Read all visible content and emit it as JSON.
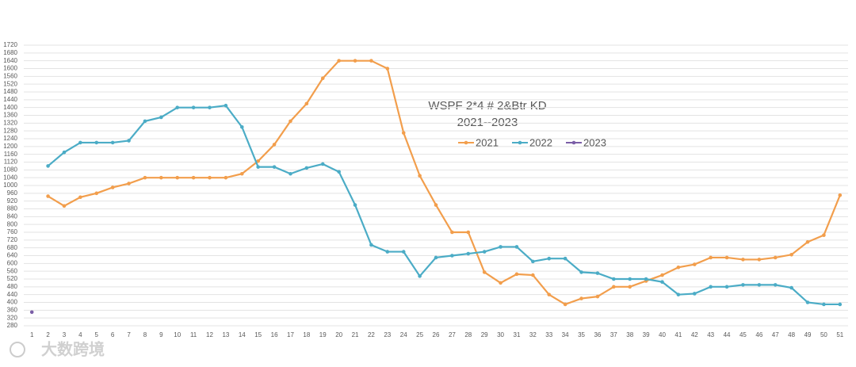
{
  "chart_data": {
    "type": "line",
    "title": "WSPF 2*4 # 2&Btr KD",
    "subtitle": "2021--2023",
    "watermark": "大数跨境",
    "categories": [
      "1",
      "2",
      "3",
      "4",
      "5",
      "6",
      "7",
      "8",
      "9",
      "10",
      "11",
      "12",
      "13",
      "14",
      "15",
      "16",
      "17",
      "18",
      "19",
      "20",
      "21",
      "22",
      "23",
      "24",
      "25",
      "26",
      "27",
      "28",
      "29",
      "30",
      "31",
      "32",
      "33",
      "34",
      "35",
      "36",
      "37",
      "38",
      "39",
      "40",
      "41",
      "42",
      "43",
      "44",
      "45",
      "46",
      "47",
      "48",
      "49",
      "50",
      "51"
    ],
    "series": [
      {
        "name": "2021",
        "color": "#f29e4c",
        "values": [
          null,
          945,
          895,
          940,
          960,
          990,
          1010,
          1040,
          1040,
          1040,
          1040,
          1040,
          1040,
          1060,
          1125,
          1210,
          1330,
          1420,
          1550,
          1640,
          1640,
          1640,
          1600,
          1270,
          1050,
          900,
          760,
          760,
          555,
          500,
          545,
          540,
          440,
          390,
          420,
          430,
          480,
          480,
          510,
          540,
          580,
          595,
          630,
          630,
          620,
          620,
          630,
          645,
          710,
          745,
          950
        ]
      },
      {
        "name": "2022",
        "color": "#4bacc6",
        "values": [
          null,
          1100,
          1170,
          1220,
          1220,
          1220,
          1230,
          1330,
          1350,
          1400,
          1400,
          1400,
          1410,
          1300,
          1095,
          1095,
          1060,
          1090,
          1110,
          1070,
          900,
          695,
          660,
          660,
          535,
          630,
          640,
          650,
          660,
          685,
          685,
          610,
          625,
          625,
          555,
          550,
          520,
          520,
          520,
          505,
          440,
          445,
          480,
          480,
          490,
          490,
          490,
          475,
          400,
          390,
          390
        ]
      },
      {
        "name": "2023",
        "color": "#7b5ea7",
        "values": [
          350,
          null,
          null,
          null,
          null,
          null,
          null,
          null,
          null,
          null,
          null,
          null,
          null,
          null,
          null,
          null,
          null,
          null,
          null,
          null,
          null,
          null,
          null,
          null,
          null,
          null,
          null,
          null,
          null,
          null,
          null,
          null,
          null,
          null,
          null,
          null,
          null,
          null,
          null,
          null,
          null,
          null,
          null,
          null,
          null,
          null,
          null,
          null,
          null,
          null,
          null
        ]
      }
    ],
    "ylim": [
      280,
      1720
    ],
    "yticks": [
      280,
      320,
      360,
      400,
      440,
      480,
      520,
      560,
      600,
      640,
      680,
      720,
      760,
      800,
      840,
      880,
      920,
      960,
      1000,
      1040,
      1080,
      1120,
      1160,
      1200,
      1240,
      1280,
      1320,
      1360,
      1400,
      1440,
      1480,
      1520,
      1560,
      1600,
      1640,
      1680,
      1720
    ],
    "grid": true
  }
}
